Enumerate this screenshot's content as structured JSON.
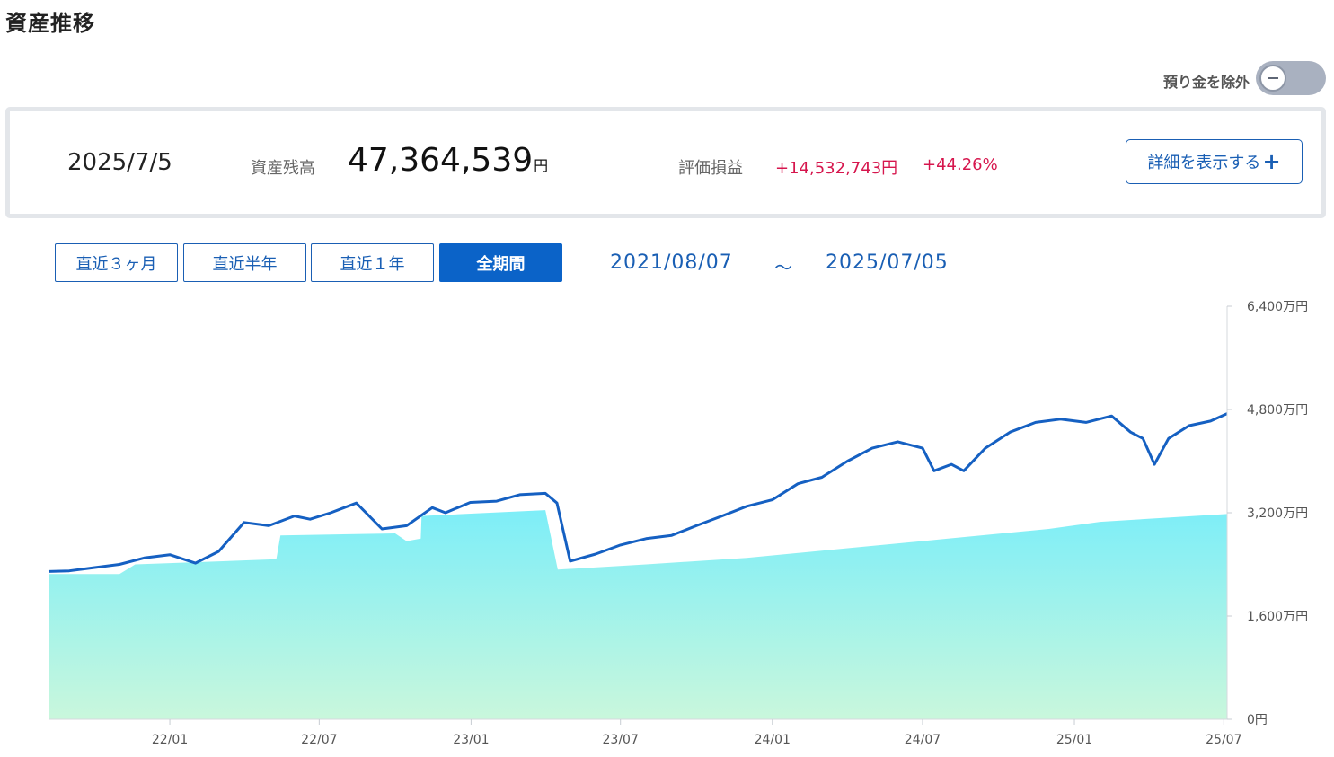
{
  "header": {
    "title": "資産推移"
  },
  "toggle": {
    "label": "預り金を除外",
    "state": "off",
    "knob_icon": "minus-icon"
  },
  "summary": {
    "date": "2025/7/5",
    "balance_label": "資産残高",
    "balance_value": "47,364,539",
    "balance_unit": "円",
    "pl_label": "評価損益",
    "pl_amount": "+14,532,743円",
    "pl_percent": "+44.26%",
    "detail_button": "詳細を表示する",
    "detail_icon": "plus-icon"
  },
  "periods": [
    {
      "label": "直近３ヶ月",
      "active": false
    },
    {
      "label": "直近半年",
      "active": false
    },
    {
      "label": "直近１年",
      "active": false
    },
    {
      "label": "全期間",
      "active": true
    }
  ],
  "range": {
    "start": "2021/08/07",
    "separator": "～",
    "end": "2025/07/05"
  },
  "colors": {
    "accent": "#1a5fb4",
    "active_button": "#0b63c8",
    "profit": "#d6164d",
    "line": "#1560c2",
    "area_top": "#7deef8",
    "area_bottom": "#c9f7dc"
  },
  "chart_data": {
    "type": "area",
    "x_start": "2021-08-07",
    "x_end": "2025-07-05",
    "ylim": [
      0,
      6400
    ],
    "y_unit": "万円",
    "yticks": [
      "6,400万円",
      "4,800万円",
      "3,200万円",
      "1,600万円",
      "0円"
    ],
    "xticks": [
      "22/01",
      "22/07",
      "23/01",
      "23/07",
      "24/01",
      "24/07",
      "25/01",
      "25/07"
    ],
    "series": [
      {
        "role": "total_assets_line",
        "x": [
          "2021-08-07",
          "2021-09-01",
          "2021-10-01",
          "2021-11-01",
          "2021-12-01",
          "2022-01-01",
          "2022-02-01",
          "2022-03-01",
          "2022-04-01",
          "2022-05-01",
          "2022-06-01",
          "2022-06-20",
          "2022-07-15",
          "2022-08-15",
          "2022-09-15",
          "2022-10-15",
          "2022-11-15",
          "2022-12-01",
          "2022-12-31",
          "2023-02-01",
          "2023-03-01",
          "2023-04-01",
          "2023-04-15",
          "2023-05-01",
          "2023-06-01",
          "2023-07-01",
          "2023-08-01",
          "2023-09-01",
          "2023-10-01",
          "2023-11-01",
          "2023-12-01",
          "2024-01-01",
          "2024-02-01",
          "2024-03-01",
          "2024-04-01",
          "2024-05-01",
          "2024-06-01",
          "2024-07-01",
          "2024-07-15",
          "2024-08-05",
          "2024-08-20",
          "2024-09-15",
          "2024-10-15",
          "2024-11-15",
          "2024-12-15",
          "2025-01-15",
          "2025-02-15",
          "2025-03-10",
          "2025-03-25",
          "2025-04-08",
          "2025-04-25",
          "2025-05-20",
          "2025-06-15",
          "2025-07-05"
        ],
        "values": [
          2290,
          2300,
          2350,
          2400,
          2500,
          2550,
          2420,
          2600,
          3050,
          3000,
          3150,
          3100,
          3200,
          3350,
          2950,
          3000,
          3280,
          3200,
          3360,
          3380,
          3480,
          3500,
          3350,
          2450,
          2560,
          2700,
          2800,
          2850,
          3000,
          3150,
          3300,
          3400,
          3650,
          3750,
          4000,
          4200,
          4300,
          4200,
          3850,
          3950,
          3850,
          4200,
          4450,
          4600,
          4650,
          4600,
          4700,
          4450,
          4350,
          3950,
          4350,
          4550,
          4620,
          4736
        ]
      },
      {
        "role": "deposit_area",
        "x": [
          "2021-08-07",
          "2021-11-01",
          "2021-11-20",
          "2022-05-10",
          "2022-05-15",
          "2022-10-01",
          "2022-10-15",
          "2022-11-01",
          "2022-11-02",
          "2023-04-01",
          "2023-04-16",
          "2023-08-01",
          "2023-12-01",
          "2024-04-01",
          "2024-08-01",
          "2024-12-01",
          "2025-02-01",
          "2025-07-05"
        ],
        "values": [
          2250,
          2250,
          2400,
          2480,
          2850,
          2880,
          2760,
          2800,
          3150,
          3240,
          2320,
          2400,
          2500,
          2650,
          2800,
          2950,
          3060,
          3180
        ]
      }
    ]
  }
}
